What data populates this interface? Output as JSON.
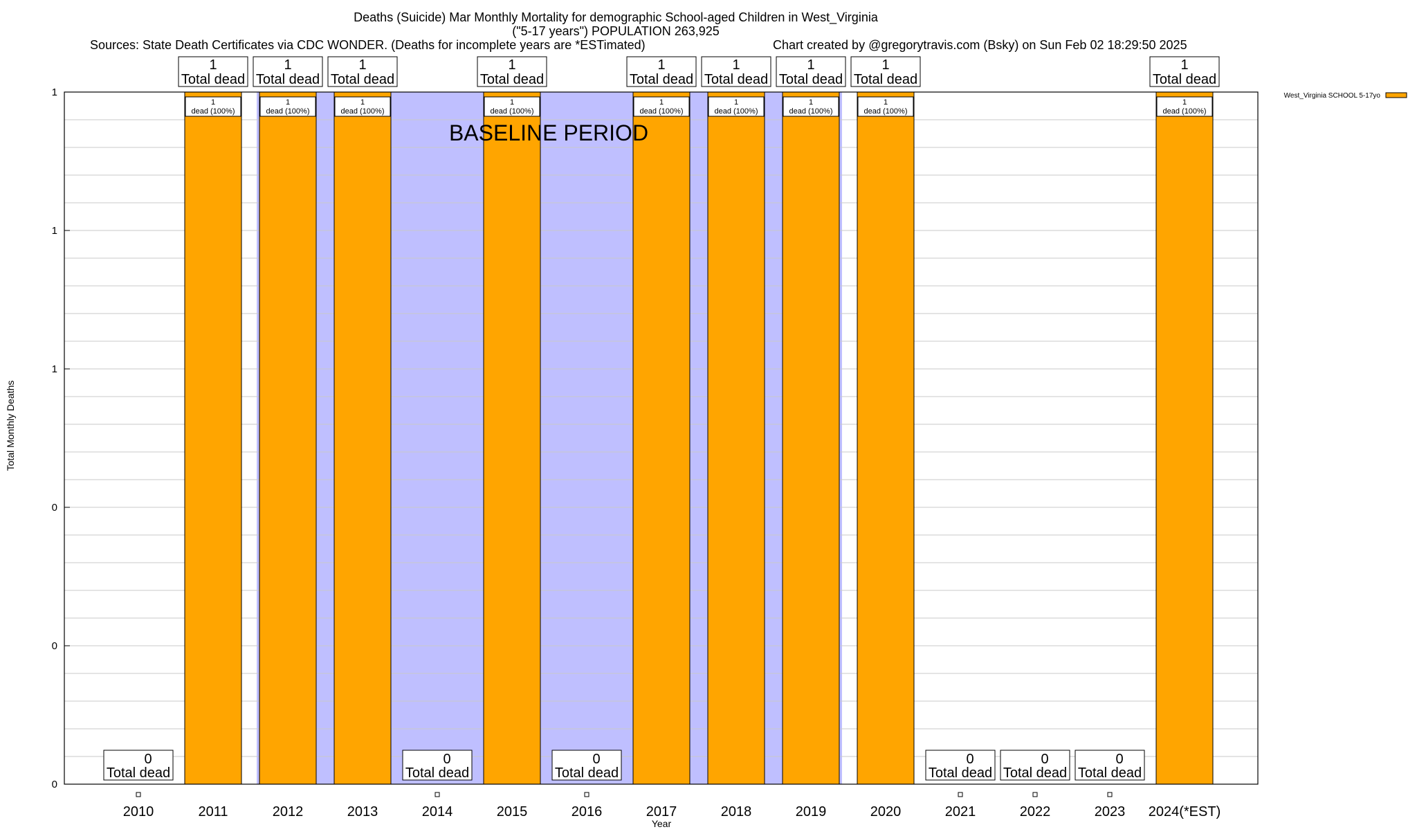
{
  "title_lines": [
    "Deaths (Suicide) Mar Monthly Mortality for demographic School-aged Children in West_Virginia",
    "(\"5-17 years\") POPULATION 263,925"
  ],
  "sources_text": "Sources: State Death Certificates via CDC WONDER. (Deaths for incomplete years are *ESTimated)",
  "credit_text": "Chart created by @gregorytravis.com (Bsky) on Sun Feb 02 18:29:50 2025",
  "chart_data": {
    "type": "bar",
    "categories": [
      "2010",
      "2011",
      "2012",
      "2013",
      "2014",
      "2015",
      "2016",
      "2017",
      "2018",
      "2019",
      "2020",
      "2021",
      "2022",
      "2023",
      "2024(*EST)"
    ],
    "series": [
      {
        "name": "West_Virginia SCHOOL 5-17yo",
        "color": "#FFA500",
        "values": [
          0,
          1,
          1,
          1,
          0,
          1,
          0,
          1,
          1,
          1,
          1,
          0,
          0,
          0,
          1
        ]
      }
    ],
    "total_labels": [
      "0",
      "1",
      "1",
      "1",
      "0",
      "1",
      "0",
      "1",
      "1",
      "1",
      "1",
      "0",
      "0",
      "0",
      "1"
    ],
    "total_caption": "Total dead",
    "inner_caption": "dead (100%)",
    "baseline_label": "BASELINE PERIOD",
    "baseline_color": "#BFBFFF",
    "baseline_categories": [
      "2012",
      "2013",
      "2014",
      "2015",
      "2016",
      "2017",
      "2018",
      "2019"
    ],
    "xlabel": "Year",
    "ylabel": "Total Monthly Deaths",
    "ylim": [
      0,
      1
    ],
    "y_tick_labels": [
      "0",
      "0",
      "0",
      "1",
      "1",
      "1"
    ],
    "legend_position": "top-right",
    "grid": true
  }
}
